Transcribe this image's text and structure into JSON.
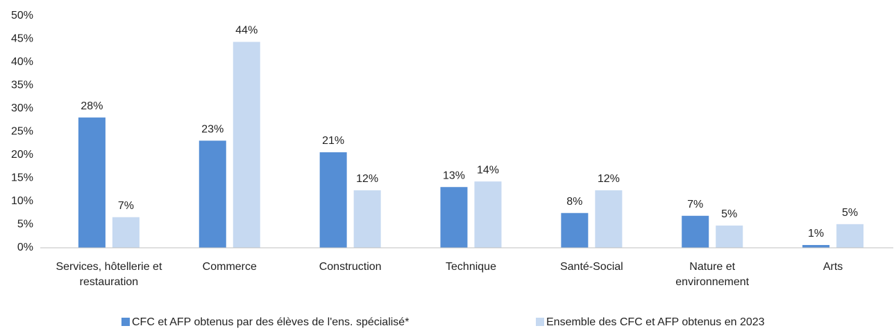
{
  "chart_data": {
    "type": "bar",
    "categories": [
      "Services, hôtellerie et restauration",
      "Commerce",
      "Construction",
      "Technique",
      "Santé-Social",
      "Nature et environnement",
      "Arts"
    ],
    "series": [
      {
        "name": "CFC et AFP obtenus par des élèves de l'ens. spécialisé*",
        "color": "#558ed5",
        "values": [
          28.1,
          23.1,
          20.6,
          13.1,
          7.5,
          6.9,
          0.6
        ],
        "value_labels": [
          "28%",
          "23%",
          "21%",
          "13%",
          "8%",
          "7%",
          "1%"
        ]
      },
      {
        "name": "Ensemble des CFC et AFP obtenus en 2023",
        "color": "#c6d9f1",
        "values": [
          6.6,
          44.4,
          12.4,
          14.3,
          12.4,
          4.8,
          5.1
        ],
        "value_labels": [
          "7%",
          "44%",
          "12%",
          "14%",
          "12%",
          "5%",
          "5%"
        ]
      }
    ],
    "ylim": [
      0,
      50
    ],
    "yticks": [
      {
        "value": 0,
        "label": "0%"
      },
      {
        "value": 5,
        "label": "5%"
      },
      {
        "value": 10,
        "label": "10%"
      },
      {
        "value": 15,
        "label": "15%"
      },
      {
        "value": 20,
        "label": "20%"
      },
      {
        "value": 25,
        "label": "25%"
      },
      {
        "value": 30,
        "label": "30%"
      },
      {
        "value": 35,
        "label": "35%"
      },
      {
        "value": 40,
        "label": "40%"
      },
      {
        "value": 45,
        "label": "45%"
      },
      {
        "value": 50,
        "label": "50%"
      }
    ],
    "grid": false,
    "legend": "bottom"
  }
}
